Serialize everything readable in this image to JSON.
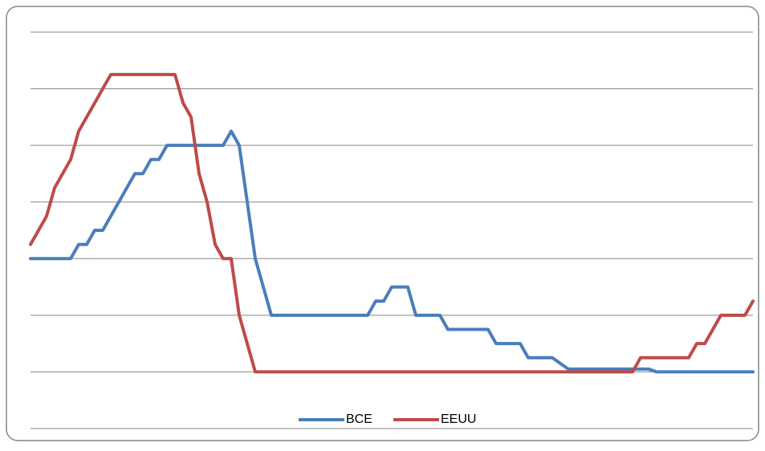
{
  "chart_data": {
    "type": "line",
    "series": [
      {
        "name": "BCE",
        "color": "#4a7ebb",
        "values": [
          2,
          2,
          2,
          2,
          2,
          2,
          2.25,
          2.25,
          2.5,
          2.5,
          2.75,
          3,
          3.25,
          3.5,
          3.5,
          3.75,
          3.75,
          4,
          4,
          4,
          4,
          4,
          4,
          4,
          4,
          4.25,
          4,
          3,
          2,
          1.5,
          1,
          1,
          1,
          1,
          1,
          1,
          1,
          1,
          1,
          1,
          1,
          1,
          1,
          1.25,
          1.25,
          1.5,
          1.5,
          1.5,
          1,
          1,
          1,
          1,
          0.75,
          0.75,
          0.75,
          0.75,
          0.75,
          0.75,
          0.5,
          0.5,
          0.5,
          0.5,
          0.25,
          0.25,
          0.25,
          0.25,
          0.15,
          0.05,
          0.05,
          0.05,
          0.05,
          0.05,
          0.05,
          0.05,
          0.05,
          0.05,
          0.05,
          0.05,
          0,
          0,
          0,
          0,
          0,
          0,
          0,
          0,
          0,
          0,
          0,
          0,
          0
        ]
      },
      {
        "name": "EEUU",
        "color": "#be4b48",
        "values": [
          2.25,
          2.5,
          2.75,
          3.25,
          3.5,
          3.75,
          4.25,
          4.5,
          4.75,
          5,
          5.25,
          5.25,
          5.25,
          5.25,
          5.25,
          5.25,
          5.25,
          5.25,
          5.25,
          4.75,
          4.5,
          3.5,
          3,
          2.25,
          2,
          2,
          1,
          0.5,
          0,
          0,
          0,
          0,
          0,
          0,
          0,
          0,
          0,
          0,
          0,
          0,
          0,
          0,
          0,
          0,
          0,
          0,
          0,
          0,
          0,
          0,
          0,
          0,
          0,
          0,
          0,
          0,
          0,
          0,
          0,
          0,
          0,
          0,
          0,
          0,
          0,
          0,
          0,
          0,
          0,
          0,
          0,
          0,
          0,
          0,
          0,
          0,
          0.25,
          0.25,
          0.25,
          0.25,
          0.25,
          0.25,
          0.25,
          0.5,
          0.5,
          0.75,
          1,
          1,
          1,
          1,
          1.25
        ]
      }
    ],
    "ylim": [
      -1,
      6
    ],
    "yticks": [
      -1,
      0,
      1,
      2,
      3,
      4,
      5,
      6
    ],
    "grid": true,
    "legend": "bottom"
  }
}
